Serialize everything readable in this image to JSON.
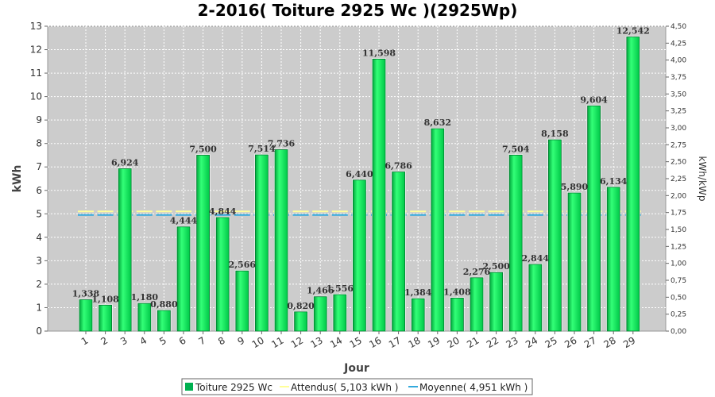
{
  "chart_data": {
    "type": "bar",
    "title": "2-2016( Toiture 2925 Wc )(2925Wp)",
    "xlabel": "Jour",
    "ylabel": "kWh",
    "y2label": "kWh/kWp",
    "ylim": [
      0,
      13
    ],
    "y2lim": [
      0,
      4.5
    ],
    "categories": [
      "1",
      "2",
      "3",
      "4",
      "5",
      "6",
      "7",
      "8",
      "9",
      "10",
      "11",
      "12",
      "13",
      "14",
      "15",
      "16",
      "17",
      "18",
      "19",
      "20",
      "21",
      "22",
      "23",
      "24",
      "25",
      "26",
      "27",
      "28",
      "29"
    ],
    "series": [
      {
        "name": "Toiture 2925 Wc",
        "values": [
          1.338,
          1.108,
          6.924,
          1.18,
          0.88,
          4.444,
          7.5,
          4.844,
          2.566,
          7.514,
          7.736,
          0.82,
          1.466,
          1.556,
          6.44,
          11.598,
          6.786,
          1.384,
          8.632,
          1.408,
          2.276,
          2.5,
          7.504,
          2.844,
          8.158,
          5.89,
          9.604,
          6.134,
          12.542
        ],
        "labels": [
          "1,338",
          "1,108",
          "6,924",
          "1,180",
          "0,880",
          "4,444",
          "7,500",
          "4,844",
          "2,566",
          "7,514",
          "7,736",
          "0,820",
          "1,466",
          "1,556",
          "6,440",
          "11,598",
          "6,786",
          "1,384",
          "8,632",
          "1,408",
          "2,276",
          "2,500",
          "7,504",
          "2,844",
          "8,158",
          "5,890",
          "9,604",
          "6,134",
          "12,542"
        ]
      }
    ],
    "expected": {
      "name": "Attendus( 5,103 kWh )",
      "value": 5.103
    },
    "average": {
      "name": "Moyenne( 4,951 kWh )",
      "value": 4.951
    },
    "y_ticks": [
      "0",
      "1",
      "2",
      "3",
      "4",
      "5",
      "6",
      "7",
      "8",
      "9",
      "10",
      "11",
      "12",
      "13"
    ],
    "y2_ticks": [
      "0,00",
      "0,25",
      "0,50",
      "0,75",
      "1,00",
      "1,25",
      "1,50",
      "1,75",
      "2,00",
      "2,25",
      "2,50",
      "2,75",
      "3,00",
      "3,25",
      "3,50",
      "3,75",
      "4,00",
      "4,25",
      "4,50"
    ],
    "grid": true,
    "legend_position": "bottom",
    "colors": {
      "bar": "#00e050",
      "bar_edge": "#007a2e",
      "expected": "#ffff99",
      "average": "#33aadd",
      "plot_bg": "#cccccc",
      "legend_bar": "#00b050"
    }
  }
}
